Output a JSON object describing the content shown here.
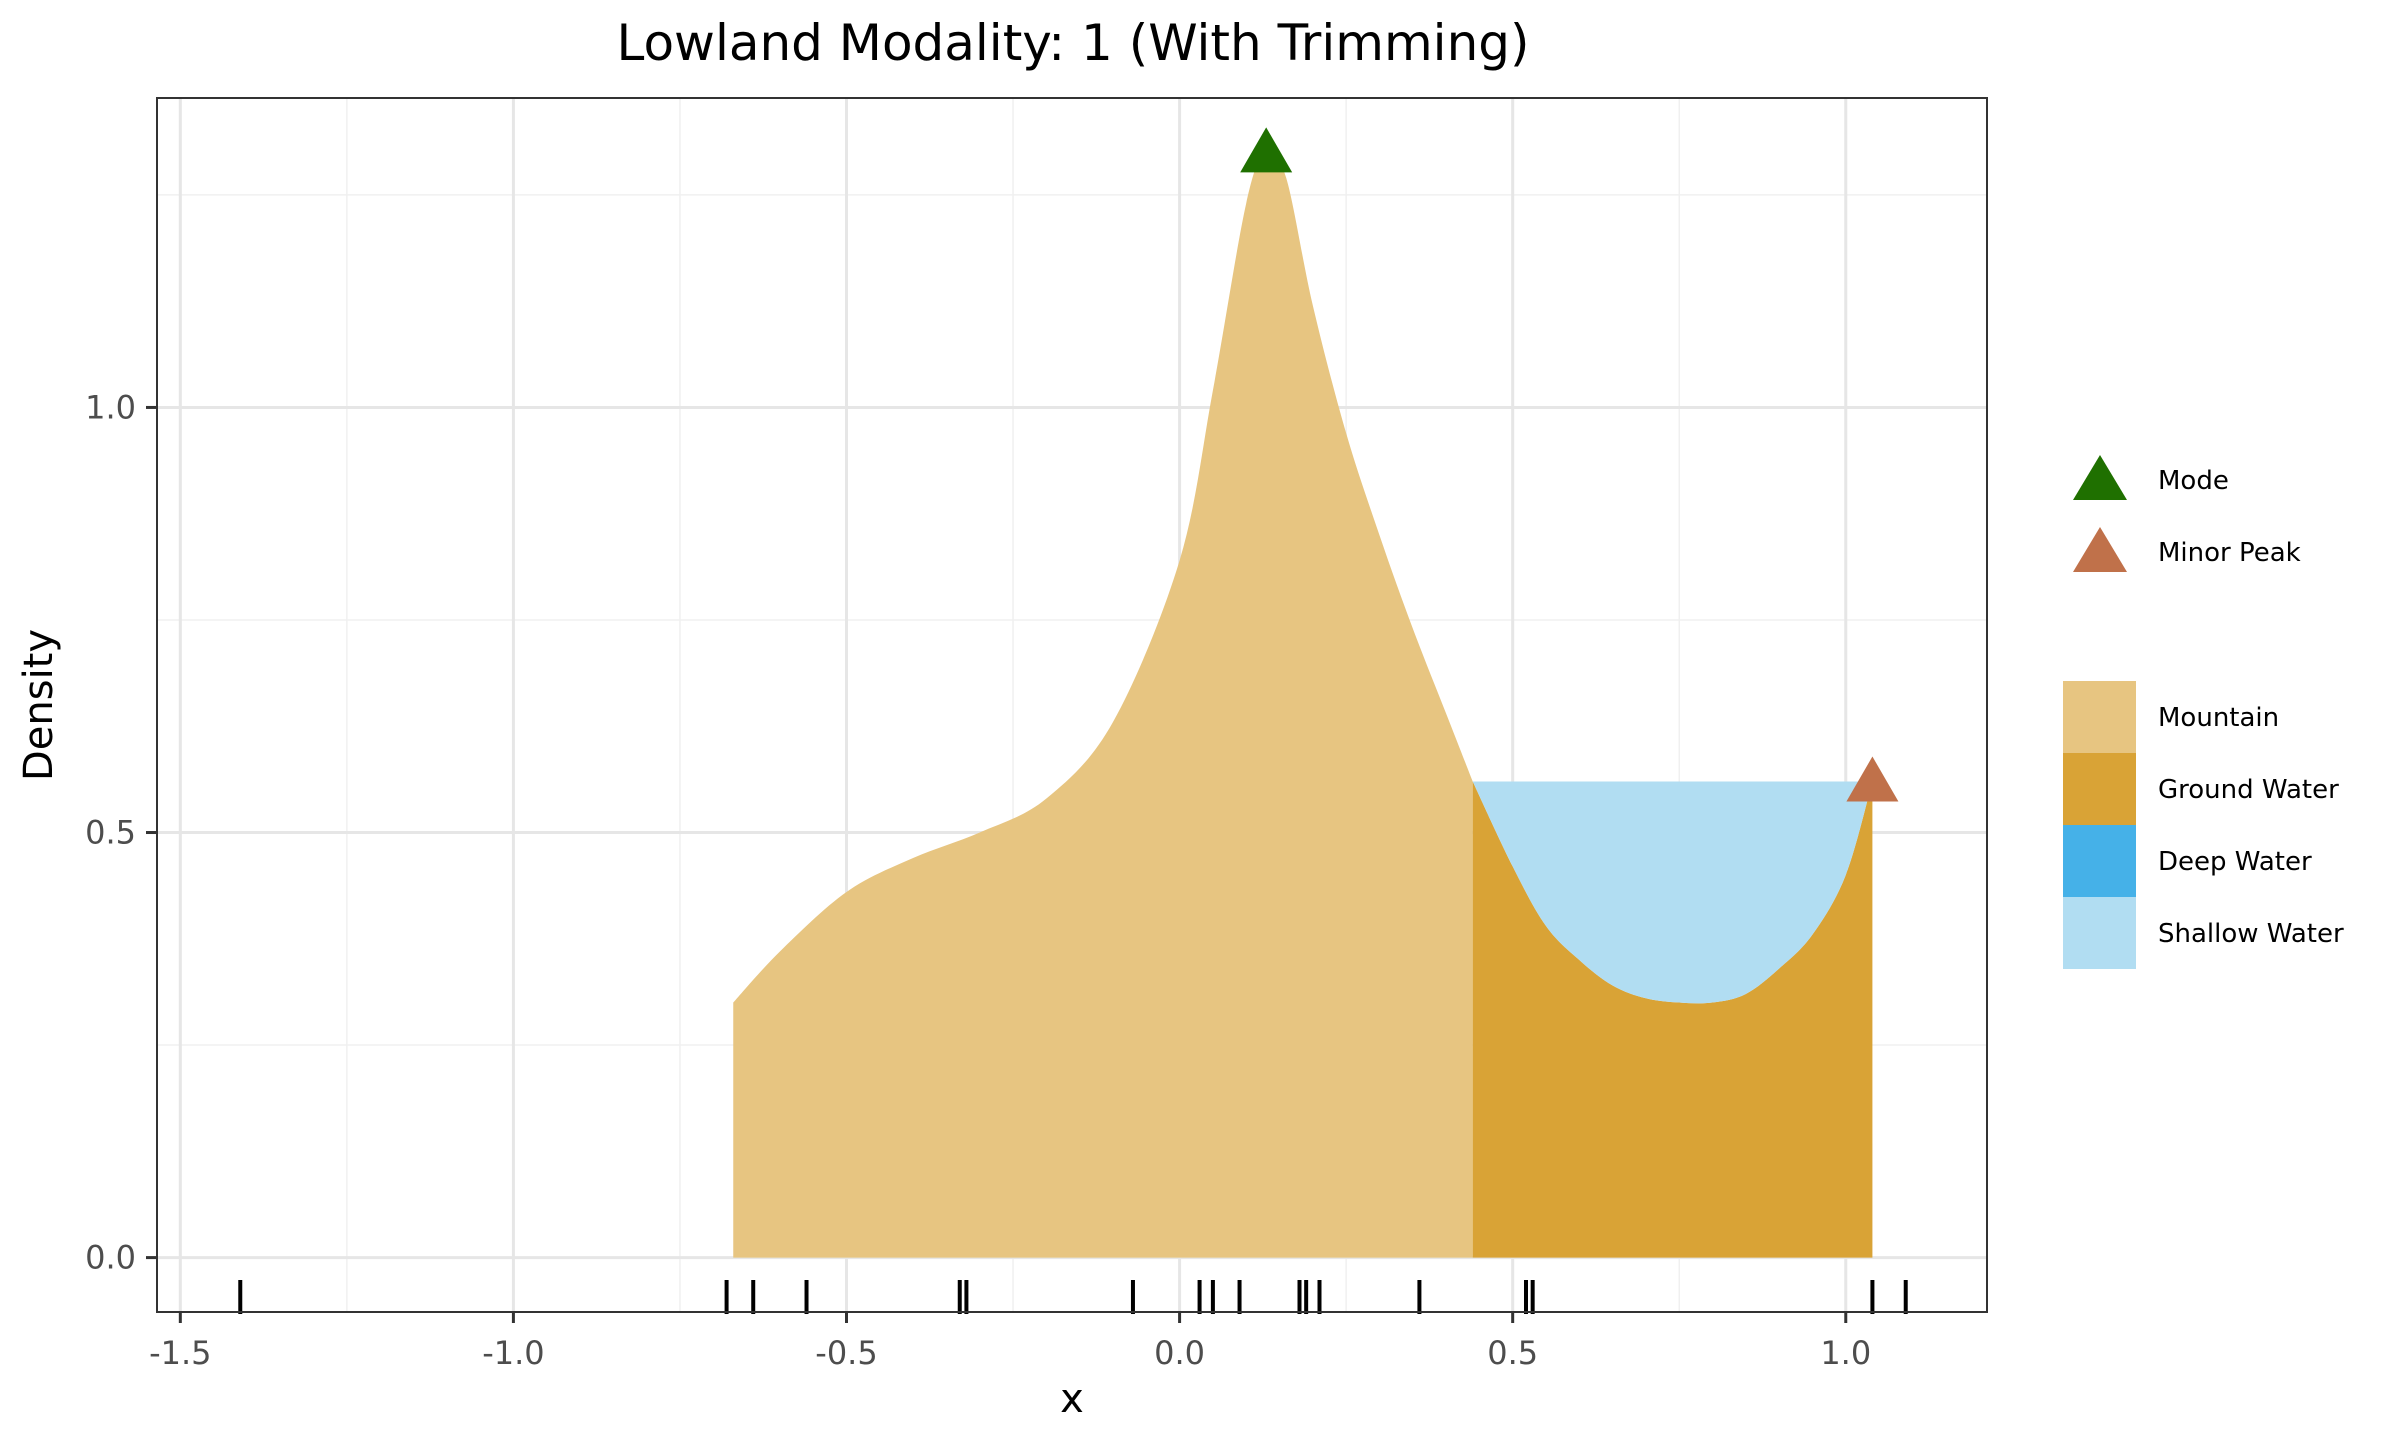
{
  "chart_data": {
    "type": "area",
    "title": "Lowland Modality: 1 (With Trimming)",
    "xlabel": "x",
    "ylabel": "Density",
    "xlim": [
      -1.535,
      1.212
    ],
    "ylim": [
      -0.064,
      1.364
    ],
    "x_ticks": [
      -1.5,
      -1.0,
      -0.5,
      0.0,
      0.5,
      1.0
    ],
    "x_tick_labels": [
      "-1.5",
      "-1.0",
      "-0.5",
      "0.0",
      "0.5",
      "1.0"
    ],
    "y_ticks": [
      0.0,
      0.5,
      1.0
    ],
    "y_tick_labels": [
      "0.0",
      "0.5",
      "1.0"
    ],
    "grid": true,
    "legend_position": "right",
    "density_curve": {
      "x": [
        -0.67,
        -0.6,
        -0.5,
        -0.4,
        -0.3,
        -0.2,
        -0.1,
        0.0,
        0.05,
        0.1,
        0.13,
        0.16,
        0.2,
        0.25,
        0.3,
        0.35,
        0.4,
        0.44,
        0.5,
        0.55,
        0.6,
        0.65,
        0.7,
        0.75,
        0.8,
        0.85,
        0.9,
        0.95,
        1.0,
        1.04
      ],
      "y": [
        0.3,
        0.36,
        0.43,
        0.47,
        0.5,
        0.54,
        0.63,
        0.82,
        1.02,
        1.24,
        1.3,
        1.27,
        1.12,
        0.97,
        0.85,
        0.74,
        0.64,
        0.56,
        0.46,
        0.39,
        0.35,
        0.32,
        0.305,
        0.3,
        0.3,
        0.31,
        0.34,
        0.38,
        0.45,
        0.56
      ]
    },
    "regions": [
      {
        "name": "Mountain",
        "x_from": -0.67,
        "x_to": 0.44,
        "fill": "#e7c581"
      },
      {
        "name": "Ground Water",
        "x_from": 0.44,
        "x_to": 1.04,
        "fill": "#d9a336"
      },
      {
        "name": "Shallow Water",
        "x_from": 0.44,
        "x_to": 1.04,
        "level": 0.56,
        "fill": "#b1ddf2"
      }
    ],
    "peaks": [
      {
        "name": "Mode",
        "x": 0.13,
        "y": 1.3,
        "color": "#1f7000"
      },
      {
        "name": "Minor Peak",
        "x": 1.04,
        "y": 0.56,
        "color": "#c0714a"
      }
    ],
    "rug": [
      -1.41,
      -0.68,
      -0.64,
      -0.56,
      -0.33,
      -0.32,
      -0.07,
      0.03,
      0.05,
      0.09,
      0.18,
      0.19,
      0.21,
      0.36,
      0.52,
      0.53,
      1.04,
      1.09
    ],
    "legend": {
      "markers": [
        {
          "label": "Mode",
          "color": "#1f7000"
        },
        {
          "label": "Minor Peak",
          "color": "#c0714a"
        }
      ],
      "fills": [
        {
          "label": "Mountain",
          "color": "#e7c581"
        },
        {
          "label": "Ground Water",
          "color": "#d9a336"
        },
        {
          "label": "Deep Water",
          "color": "#45b1e8"
        },
        {
          "label": "Shallow Water",
          "color": "#b1ddf2"
        }
      ]
    }
  }
}
